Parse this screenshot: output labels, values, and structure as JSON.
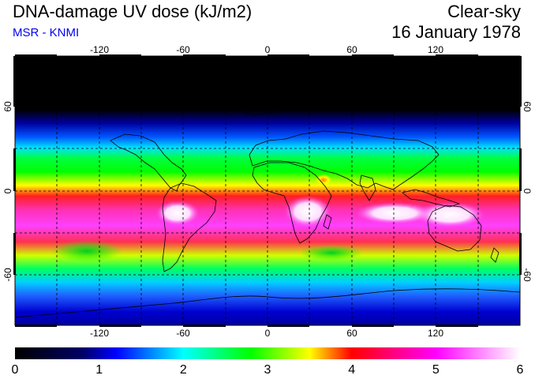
{
  "header": {
    "title": "DNA-damage UV dose (kJ/m2)",
    "source": "MSR - KNMI",
    "condition": "Clear-sky",
    "date": "16 January 1978"
  },
  "map": {
    "longitude_ticks": [
      "-120",
      "-60",
      "0",
      "60",
      "120"
    ],
    "latitude_ticks": [
      "60",
      "0",
      "-60"
    ],
    "colorbar": {
      "min": 0,
      "max": 6,
      "labels": [
        "0",
        "1",
        "2",
        "3",
        "4",
        "5",
        "6"
      ],
      "stops": [
        {
          "value": 0.0,
          "color": "#000000"
        },
        {
          "value": 0.8,
          "color": "#000066"
        },
        {
          "value": 1.2,
          "color": "#0000ff"
        },
        {
          "value": 2.0,
          "color": "#00ffff"
        },
        {
          "value": 2.8,
          "color": "#00ff00"
        },
        {
          "value": 3.5,
          "color": "#ffff00"
        },
        {
          "value": 4.0,
          "color": "#ff0000"
        },
        {
          "value": 5.0,
          "color": "#ff00ff"
        },
        {
          "value": 6.0,
          "color": "#ffffff"
        }
      ]
    }
  }
}
